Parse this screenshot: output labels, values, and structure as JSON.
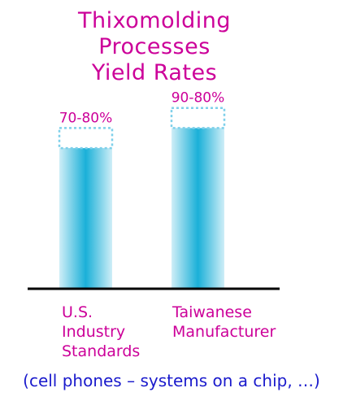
{
  "chart_data": {
    "type": "bar",
    "title_lines": [
      "Thixomolding",
      "Processes",
      "Yield Rates"
    ],
    "categories": [
      {
        "lines": [
          "U.S.",
          "Industry",
          "Standards"
        ]
      },
      {
        "lines": [
          "Taiwanese",
          "Manufacturer"
        ]
      }
    ],
    "series": [
      {
        "values": [
          [
            70,
            80
          ],
          [
            80,
            90
          ]
        ]
      }
    ],
    "data_labels": [
      "70-80%",
      "90-80%"
    ],
    "ylim": [
      0,
      100
    ],
    "note": "(cell phones – systems on a chip, …)"
  },
  "colors": {
    "title": "#cc0099",
    "bar_center": "#1ab0d8",
    "bar_edge": "#cfeef7",
    "range_box": "#7fd0ea",
    "note": "#1a1acc",
    "axis": "#000000"
  }
}
